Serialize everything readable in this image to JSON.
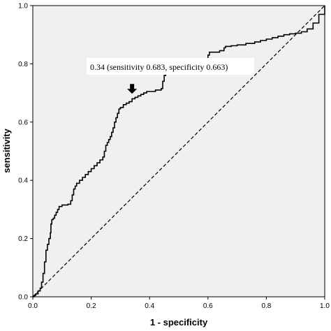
{
  "chart_data": {
    "type": "line",
    "xlabel": "1 - specificity",
    "ylabel": "sensitivity",
    "xlim": [
      0,
      1
    ],
    "ylim": [
      0,
      1
    ],
    "x_ticks": [
      "0.0",
      "0.2",
      "0.4",
      "0.6",
      "0.8",
      "1.0"
    ],
    "y_ticks": [
      "0.0",
      "0.2",
      "0.4",
      "0.6",
      "0.8",
      "1.0"
    ],
    "grid": false,
    "background_color": "#f0f0f0",
    "series": [
      {
        "style": "solid",
        "color": "#000000",
        "points": [
          [
            0.0,
            0.0
          ],
          [
            0.005,
            0.005
          ],
          [
            0.01,
            0.01
          ],
          [
            0.018,
            0.02
          ],
          [
            0.025,
            0.03
          ],
          [
            0.03,
            0.05
          ],
          [
            0.035,
            0.08
          ],
          [
            0.04,
            0.12
          ],
          [
            0.045,
            0.16
          ],
          [
            0.05,
            0.18
          ],
          [
            0.055,
            0.2
          ],
          [
            0.06,
            0.22
          ],
          [
            0.062,
            0.25
          ],
          [
            0.065,
            0.265
          ],
          [
            0.07,
            0.27
          ],
          [
            0.075,
            0.28
          ],
          [
            0.08,
            0.29
          ],
          [
            0.085,
            0.3
          ],
          [
            0.09,
            0.31
          ],
          [
            0.1,
            0.315
          ],
          [
            0.12,
            0.318
          ],
          [
            0.13,
            0.33
          ],
          [
            0.135,
            0.35
          ],
          [
            0.14,
            0.37
          ],
          [
            0.145,
            0.38
          ],
          [
            0.15,
            0.39
          ],
          [
            0.16,
            0.4
          ],
          [
            0.17,
            0.41
          ],
          [
            0.18,
            0.42
          ],
          [
            0.19,
            0.43
          ],
          [
            0.2,
            0.44
          ],
          [
            0.21,
            0.45
          ],
          [
            0.22,
            0.46
          ],
          [
            0.23,
            0.47
          ],
          [
            0.24,
            0.48
          ],
          [
            0.245,
            0.5
          ],
          [
            0.25,
            0.52
          ],
          [
            0.255,
            0.53
          ],
          [
            0.26,
            0.54
          ],
          [
            0.265,
            0.55
          ],
          [
            0.27,
            0.565
          ],
          [
            0.275,
            0.58
          ],
          [
            0.28,
            0.6
          ],
          [
            0.285,
            0.615
          ],
          [
            0.29,
            0.63
          ],
          [
            0.295,
            0.645
          ],
          [
            0.3,
            0.65
          ],
          [
            0.31,
            0.66
          ],
          [
            0.32,
            0.665
          ],
          [
            0.33,
            0.67
          ],
          [
            0.34,
            0.68
          ],
          [
            0.35,
            0.685
          ],
          [
            0.36,
            0.69
          ],
          [
            0.37,
            0.695
          ],
          [
            0.38,
            0.7
          ],
          [
            0.39,
            0.705
          ],
          [
            0.42,
            0.71
          ],
          [
            0.44,
            0.715
          ],
          [
            0.445,
            0.74
          ],
          [
            0.45,
            0.76
          ],
          [
            0.455,
            0.79
          ],
          [
            0.47,
            0.795
          ],
          [
            0.5,
            0.8
          ],
          [
            0.56,
            0.803
          ],
          [
            0.595,
            0.805
          ],
          [
            0.6,
            0.83
          ],
          [
            0.605,
            0.84
          ],
          [
            0.64,
            0.845
          ],
          [
            0.655,
            0.855
          ],
          [
            0.66,
            0.86
          ],
          [
            0.68,
            0.862
          ],
          [
            0.7,
            0.865
          ],
          [
            0.73,
            0.87
          ],
          [
            0.76,
            0.875
          ],
          [
            0.78,
            0.88
          ],
          [
            0.8,
            0.885
          ],
          [
            0.82,
            0.89
          ],
          [
            0.84,
            0.895
          ],
          [
            0.86,
            0.9
          ],
          [
            0.88,
            0.903
          ],
          [
            0.9,
            0.905
          ],
          [
            0.92,
            0.91
          ],
          [
            0.94,
            0.92
          ],
          [
            0.96,
            0.94
          ],
          [
            0.98,
            0.97
          ],
          [
            1.0,
            1.0
          ]
        ]
      },
      {
        "style": "dashed",
        "color": "#000000",
        "points": [
          [
            0,
            0
          ],
          [
            1,
            1
          ]
        ]
      }
    ],
    "annotation": {
      "text": "0.34 (sensitivity 0.683, specificity 0.663)",
      "arrow_x": 0.34,
      "arrow_y": 0.683
    }
  }
}
